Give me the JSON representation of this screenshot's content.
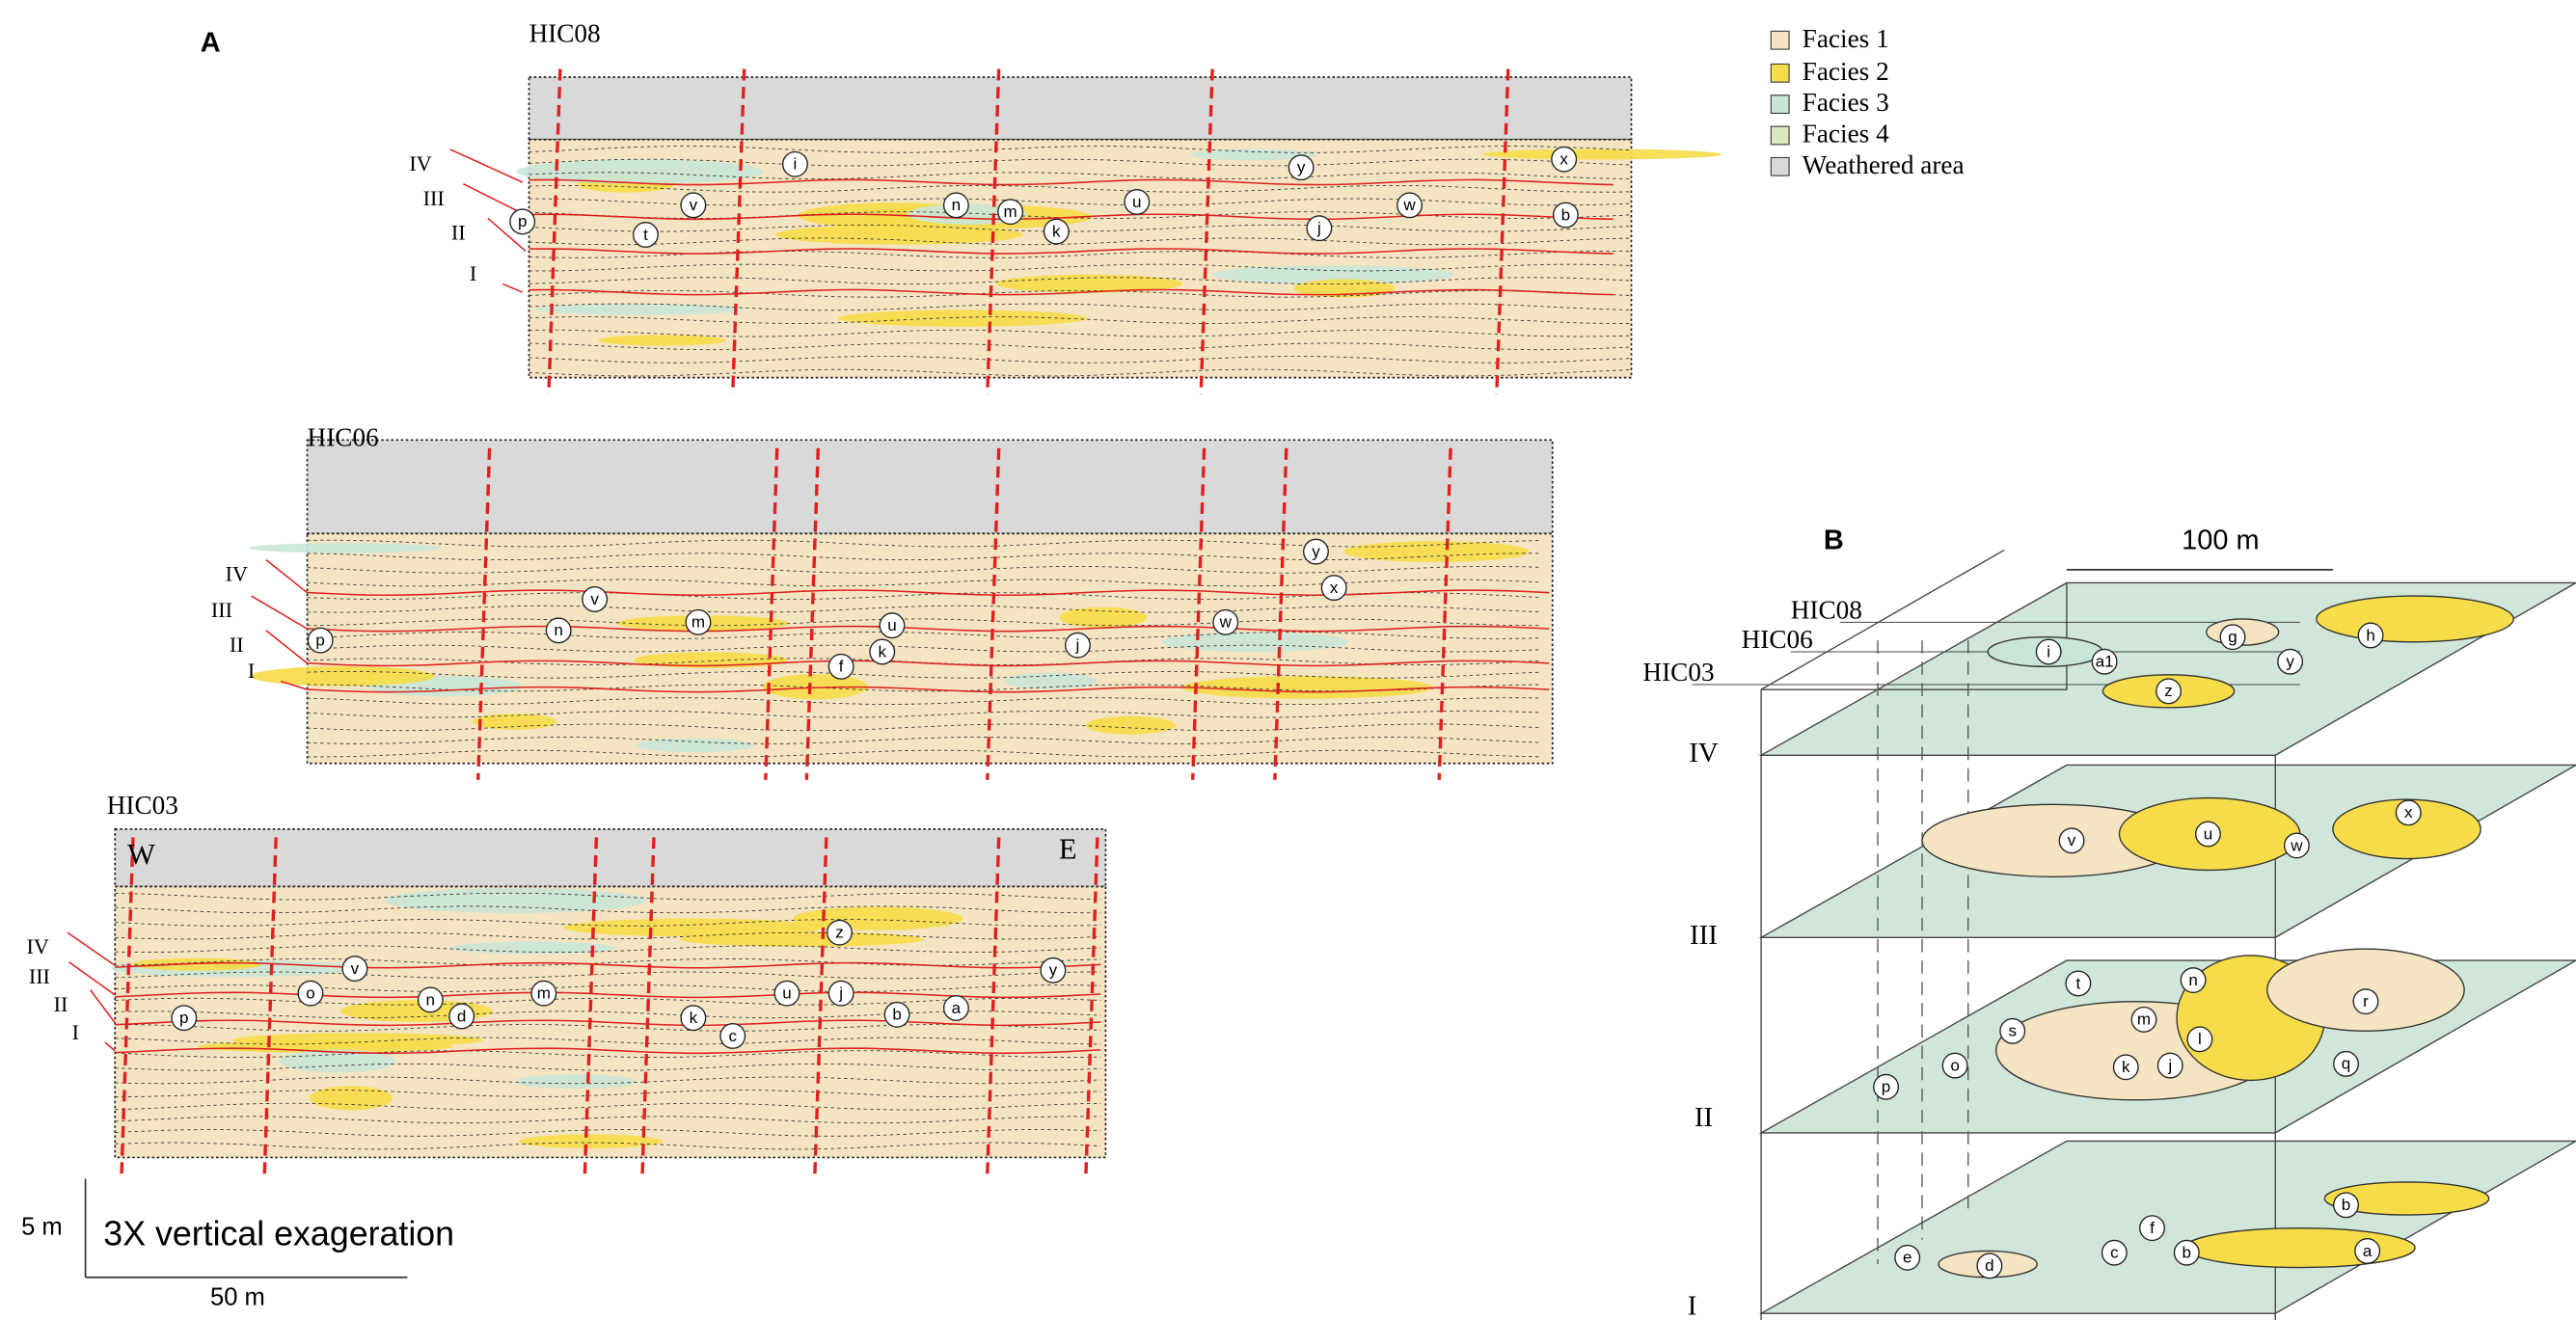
{
  "panel_a": {
    "label": "A",
    "sections": [
      {
        "name": "HIC08",
        "units": [
          "IV",
          "III",
          "II",
          "I"
        ],
        "markers": [
          "i",
          "v",
          "t",
          "p",
          "n",
          "m",
          "k",
          "u",
          "y",
          "w",
          "j",
          "x",
          "b"
        ]
      },
      {
        "name": "HIC06",
        "units": [
          "IV",
          "III",
          "II",
          "I"
        ],
        "markers": [
          "v",
          "n",
          "m",
          "p",
          "u",
          "k",
          "f",
          "j",
          "w",
          "y",
          "x"
        ]
      },
      {
        "name": "HIC03",
        "units": [
          "IV",
          "III",
          "II",
          "I"
        ],
        "markers": [
          "z",
          "v",
          "o",
          "n",
          "d",
          "m",
          "p",
          "k",
          "c",
          "u",
          "j",
          "b",
          "a",
          "y"
        ]
      }
    ],
    "west": "W",
    "east": "E"
  },
  "legend": [
    {
      "label": "Facies 1",
      "color": "#f4e4c1"
    },
    {
      "label": "Facies 2",
      "color": "#f6dc48"
    },
    {
      "label": "Facies 3",
      "color": "#c9e5d7"
    },
    {
      "label": "Facies 4",
      "color": "#d9e8c3"
    },
    {
      "label": "Weathered area",
      "color": "#d9d9d9"
    }
  ],
  "scale": {
    "vertical": "5 m",
    "note": "3X vertical exageration",
    "horizontal": "50 m"
  },
  "panel_b": {
    "label": "B",
    "scale": "100 m",
    "sections": [
      "HIC08",
      "HIC06",
      "HIC03"
    ],
    "levels": [
      {
        "name": "IV",
        "markers": [
          "i",
          "a1",
          "g",
          "h",
          "y",
          "z"
        ]
      },
      {
        "name": "III",
        "markers": [
          "v",
          "u",
          "w",
          "x"
        ]
      },
      {
        "name": "II",
        "markers": [
          "t",
          "n",
          "s",
          "m",
          "l",
          "r",
          "p",
          "o",
          "k",
          "j",
          "q"
        ]
      },
      {
        "name": "I",
        "markers": [
          "b",
          "f",
          "e",
          "d",
          "c",
          "b",
          "a"
        ]
      }
    ]
  }
}
